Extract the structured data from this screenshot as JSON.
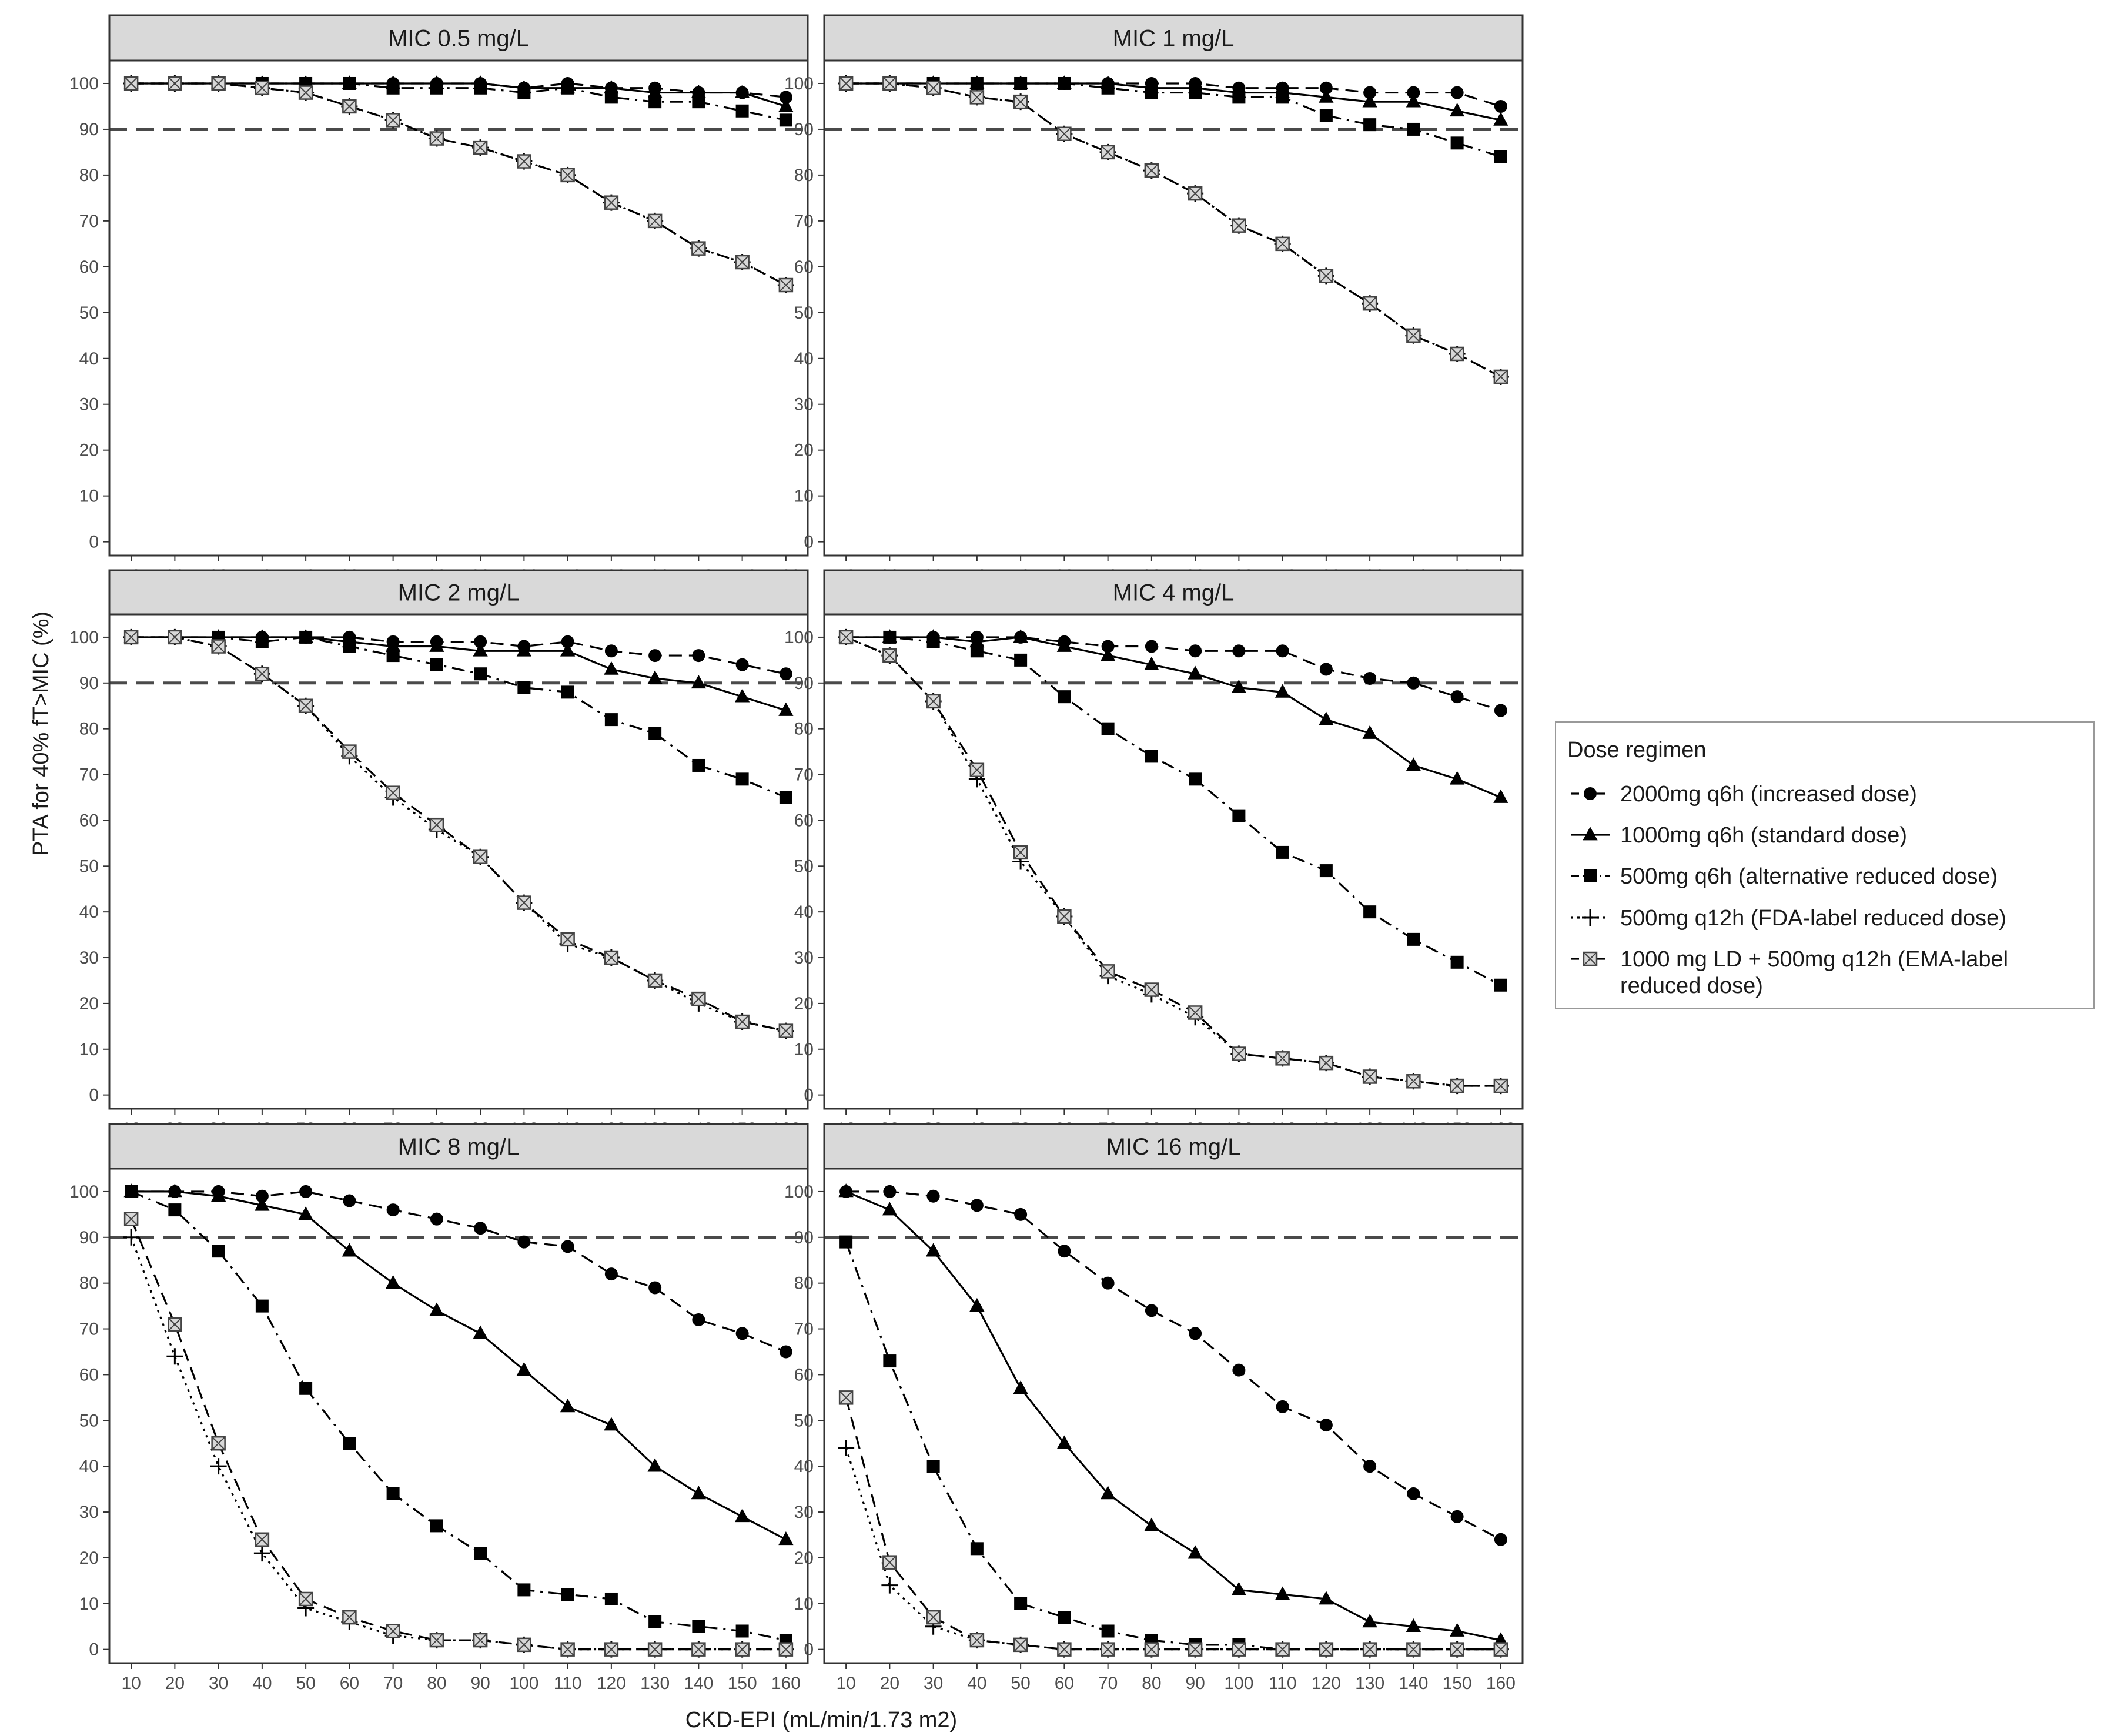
{
  "chart_data": {
    "type": "line",
    "xlabel": "CKD-EPI (mL/min/1.73 m2)",
    "ylabel": "PTA for 40% fT>MIC (%)",
    "x": [
      10,
      20,
      30,
      40,
      50,
      60,
      70,
      80,
      90,
      100,
      110,
      120,
      130,
      140,
      150,
      160
    ],
    "x_ticks": [
      "10",
      "20",
      "30",
      "40",
      "50",
      "60",
      "70",
      "80",
      "90",
      "100",
      "110",
      "120",
      "130",
      "140",
      "150",
      "160"
    ],
    "y_ticks": [
      "0",
      "10",
      "20",
      "30",
      "40",
      "50",
      "60",
      "70",
      "80",
      "90",
      "100"
    ],
    "xlim": [
      5,
      165
    ],
    "ylim": [
      -3,
      105
    ],
    "reference_line": 90,
    "grid": false,
    "legend": {
      "title": "Dose regimen",
      "placement": "right",
      "entries": [
        {
          "label": "2000mg q6h (increased dose)",
          "marker": "circle",
          "dash": "dashed"
        },
        {
          "label": "1000mg q6h (standard dose)",
          "marker": "triangle",
          "dash": "solid"
        },
        {
          "label": "500mg q6h (alternative reduced dose)",
          "marker": "square",
          "dash": "dashdot"
        },
        {
          "label": "500mg q12h (FDA-label reduced dose)",
          "marker": "plus",
          "dash": "dotted"
        },
        {
          "label": "1000 mg LD + 500mg q12h (EMA-label",
          "label2": "reduced dose)",
          "marker": "crossed-square",
          "dash": "dashed"
        }
      ]
    },
    "panels": [
      {
        "title": "MIC 0.5 mg/L",
        "series": [
          {
            "values": [
              100,
              100,
              100,
              100,
              100,
              100,
              100,
              100,
              100,
              99,
              100,
              99,
              99,
              98,
              98,
              97
            ]
          },
          {
            "values": [
              100,
              100,
              100,
              100,
              100,
              100,
              100,
              100,
              100,
              99,
              99,
              99,
              98,
              98,
              98,
              95
            ]
          },
          {
            "values": [
              100,
              100,
              100,
              100,
              100,
              100,
              99,
              99,
              99,
              98,
              99,
              97,
              96,
              96,
              94,
              92
            ]
          },
          {
            "values": [
              100,
              100,
              100,
              99,
              98,
              95,
              92,
              88,
              86,
              83,
              80,
              74,
              70,
              64,
              61,
              56
            ]
          },
          {
            "values": [
              100,
              100,
              100,
              99,
              98,
              95,
              92,
              88,
              86,
              83,
              80,
              74,
              70,
              64,
              61,
              56
            ]
          }
        ]
      },
      {
        "title": "MIC 1 mg/L",
        "series": [
          {
            "values": [
              100,
              100,
              100,
              100,
              100,
              100,
              100,
              100,
              100,
              99,
              99,
              99,
              98,
              98,
              98,
              95
            ]
          },
          {
            "values": [
              100,
              100,
              100,
              100,
              100,
              100,
              100,
              99,
              99,
              98,
              98,
              97,
              96,
              96,
              94,
              92
            ]
          },
          {
            "values": [
              100,
              100,
              100,
              100,
              100,
              100,
              99,
              98,
              98,
              97,
              97,
              93,
              91,
              90,
              87,
              84
            ]
          },
          {
            "values": [
              100,
              100,
              99,
              97,
              96,
              89,
              85,
              81,
              76,
              69,
              65,
              58,
              52,
              45,
              41,
              36
            ]
          },
          {
            "values": [
              100,
              100,
              99,
              97,
              96,
              89,
              85,
              81,
              76,
              69,
              65,
              58,
              52,
              45,
              41,
              36
            ]
          }
        ]
      },
      {
        "title": "MIC 2 mg/L",
        "series": [
          {
            "values": [
              100,
              100,
              100,
              100,
              100,
              100,
              99,
              99,
              99,
              98,
              99,
              97,
              96,
              96,
              94,
              92
            ]
          },
          {
            "values": [
              100,
              100,
              100,
              100,
              100,
              99,
              98,
              98,
              97,
              97,
              97,
              93,
              91,
              90,
              87,
              84
            ]
          },
          {
            "values": [
              100,
              100,
              100,
              99,
              100,
              98,
              96,
              94,
              92,
              89,
              88,
              82,
              79,
              72,
              69,
              65
            ]
          },
          {
            "values": [
              100,
              100,
              98,
              92,
              85,
              74,
              65,
              58,
              52,
              42,
              33,
              30,
              25,
              20,
              16,
              14
            ]
          },
          {
            "values": [
              100,
              100,
              98,
              92,
              85,
              75,
              66,
              59,
              52,
              42,
              34,
              30,
              25,
              21,
              16,
              14
            ]
          }
        ]
      },
      {
        "title": "MIC 4 mg/L",
        "series": [
          {
            "values": [
              100,
              100,
              100,
              100,
              100,
              99,
              98,
              98,
              97,
              97,
              97,
              93,
              91,
              90,
              87,
              84
            ]
          },
          {
            "values": [
              100,
              100,
              100,
              99,
              100,
              98,
              96,
              94,
              92,
              89,
              88,
              82,
              79,
              72,
              69,
              65
            ]
          },
          {
            "values": [
              100,
              100,
              99,
              97,
              95,
              87,
              80,
              74,
              69,
              61,
              53,
              49,
              40,
              34,
              29,
              24
            ]
          },
          {
            "values": [
              100,
              96,
              86,
              69,
              51,
              39,
              26,
              22,
              17,
              9,
              8,
              7,
              4,
              3,
              2,
              2
            ]
          },
          {
            "values": [
              100,
              96,
              86,
              71,
              53,
              39,
              27,
              23,
              18,
              9,
              8,
              7,
              4,
              3,
              2,
              2
            ]
          }
        ]
      },
      {
        "title": "MIC 8 mg/L",
        "series": [
          {
            "values": [
              100,
              100,
              100,
              99,
              100,
              98,
              96,
              94,
              92,
              89,
              88,
              82,
              79,
              72,
              69,
              65
            ]
          },
          {
            "values": [
              100,
              100,
              99,
              97,
              95,
              87,
              80,
              74,
              69,
              61,
              53,
              49,
              40,
              34,
              29,
              24
            ]
          },
          {
            "values": [
              100,
              96,
              87,
              75,
              57,
              45,
              34,
              27,
              21,
              13,
              12,
              11,
              6,
              5,
              4,
              2
            ]
          },
          {
            "values": [
              90,
              64,
              40,
              21,
              9,
              6,
              3,
              2,
              2,
              1,
              0,
              0,
              0,
              0,
              0,
              0
            ]
          },
          {
            "values": [
              94,
              71,
              45,
              24,
              11,
              7,
              4,
              2,
              2,
              1,
              0,
              0,
              0,
              0,
              0,
              0
            ]
          }
        ]
      },
      {
        "title": "MIC 16 mg/L",
        "series": [
          {
            "values": [
              100,
              100,
              99,
              97,
              95,
              87,
              80,
              74,
              69,
              61,
              53,
              49,
              40,
              34,
              29,
              24
            ]
          },
          {
            "values": [
              100,
              96,
              87,
              75,
              57,
              45,
              34,
              27,
              21,
              13,
              12,
              11,
              6,
              5,
              4,
              2
            ]
          },
          {
            "values": [
              89,
              63,
              40,
              22,
              10,
              7,
              4,
              2,
              1,
              1,
              0,
              0,
              0,
              0,
              0,
              0
            ]
          },
          {
            "values": [
              44,
              14,
              5,
              2,
              1,
              0,
              0,
              0,
              0,
              0,
              0,
              0,
              0,
              0,
              0,
              0
            ]
          },
          {
            "values": [
              55,
              19,
              7,
              2,
              1,
              0,
              0,
              0,
              0,
              0,
              0,
              0,
              0,
              0,
              0,
              0
            ]
          }
        ]
      }
    ]
  }
}
